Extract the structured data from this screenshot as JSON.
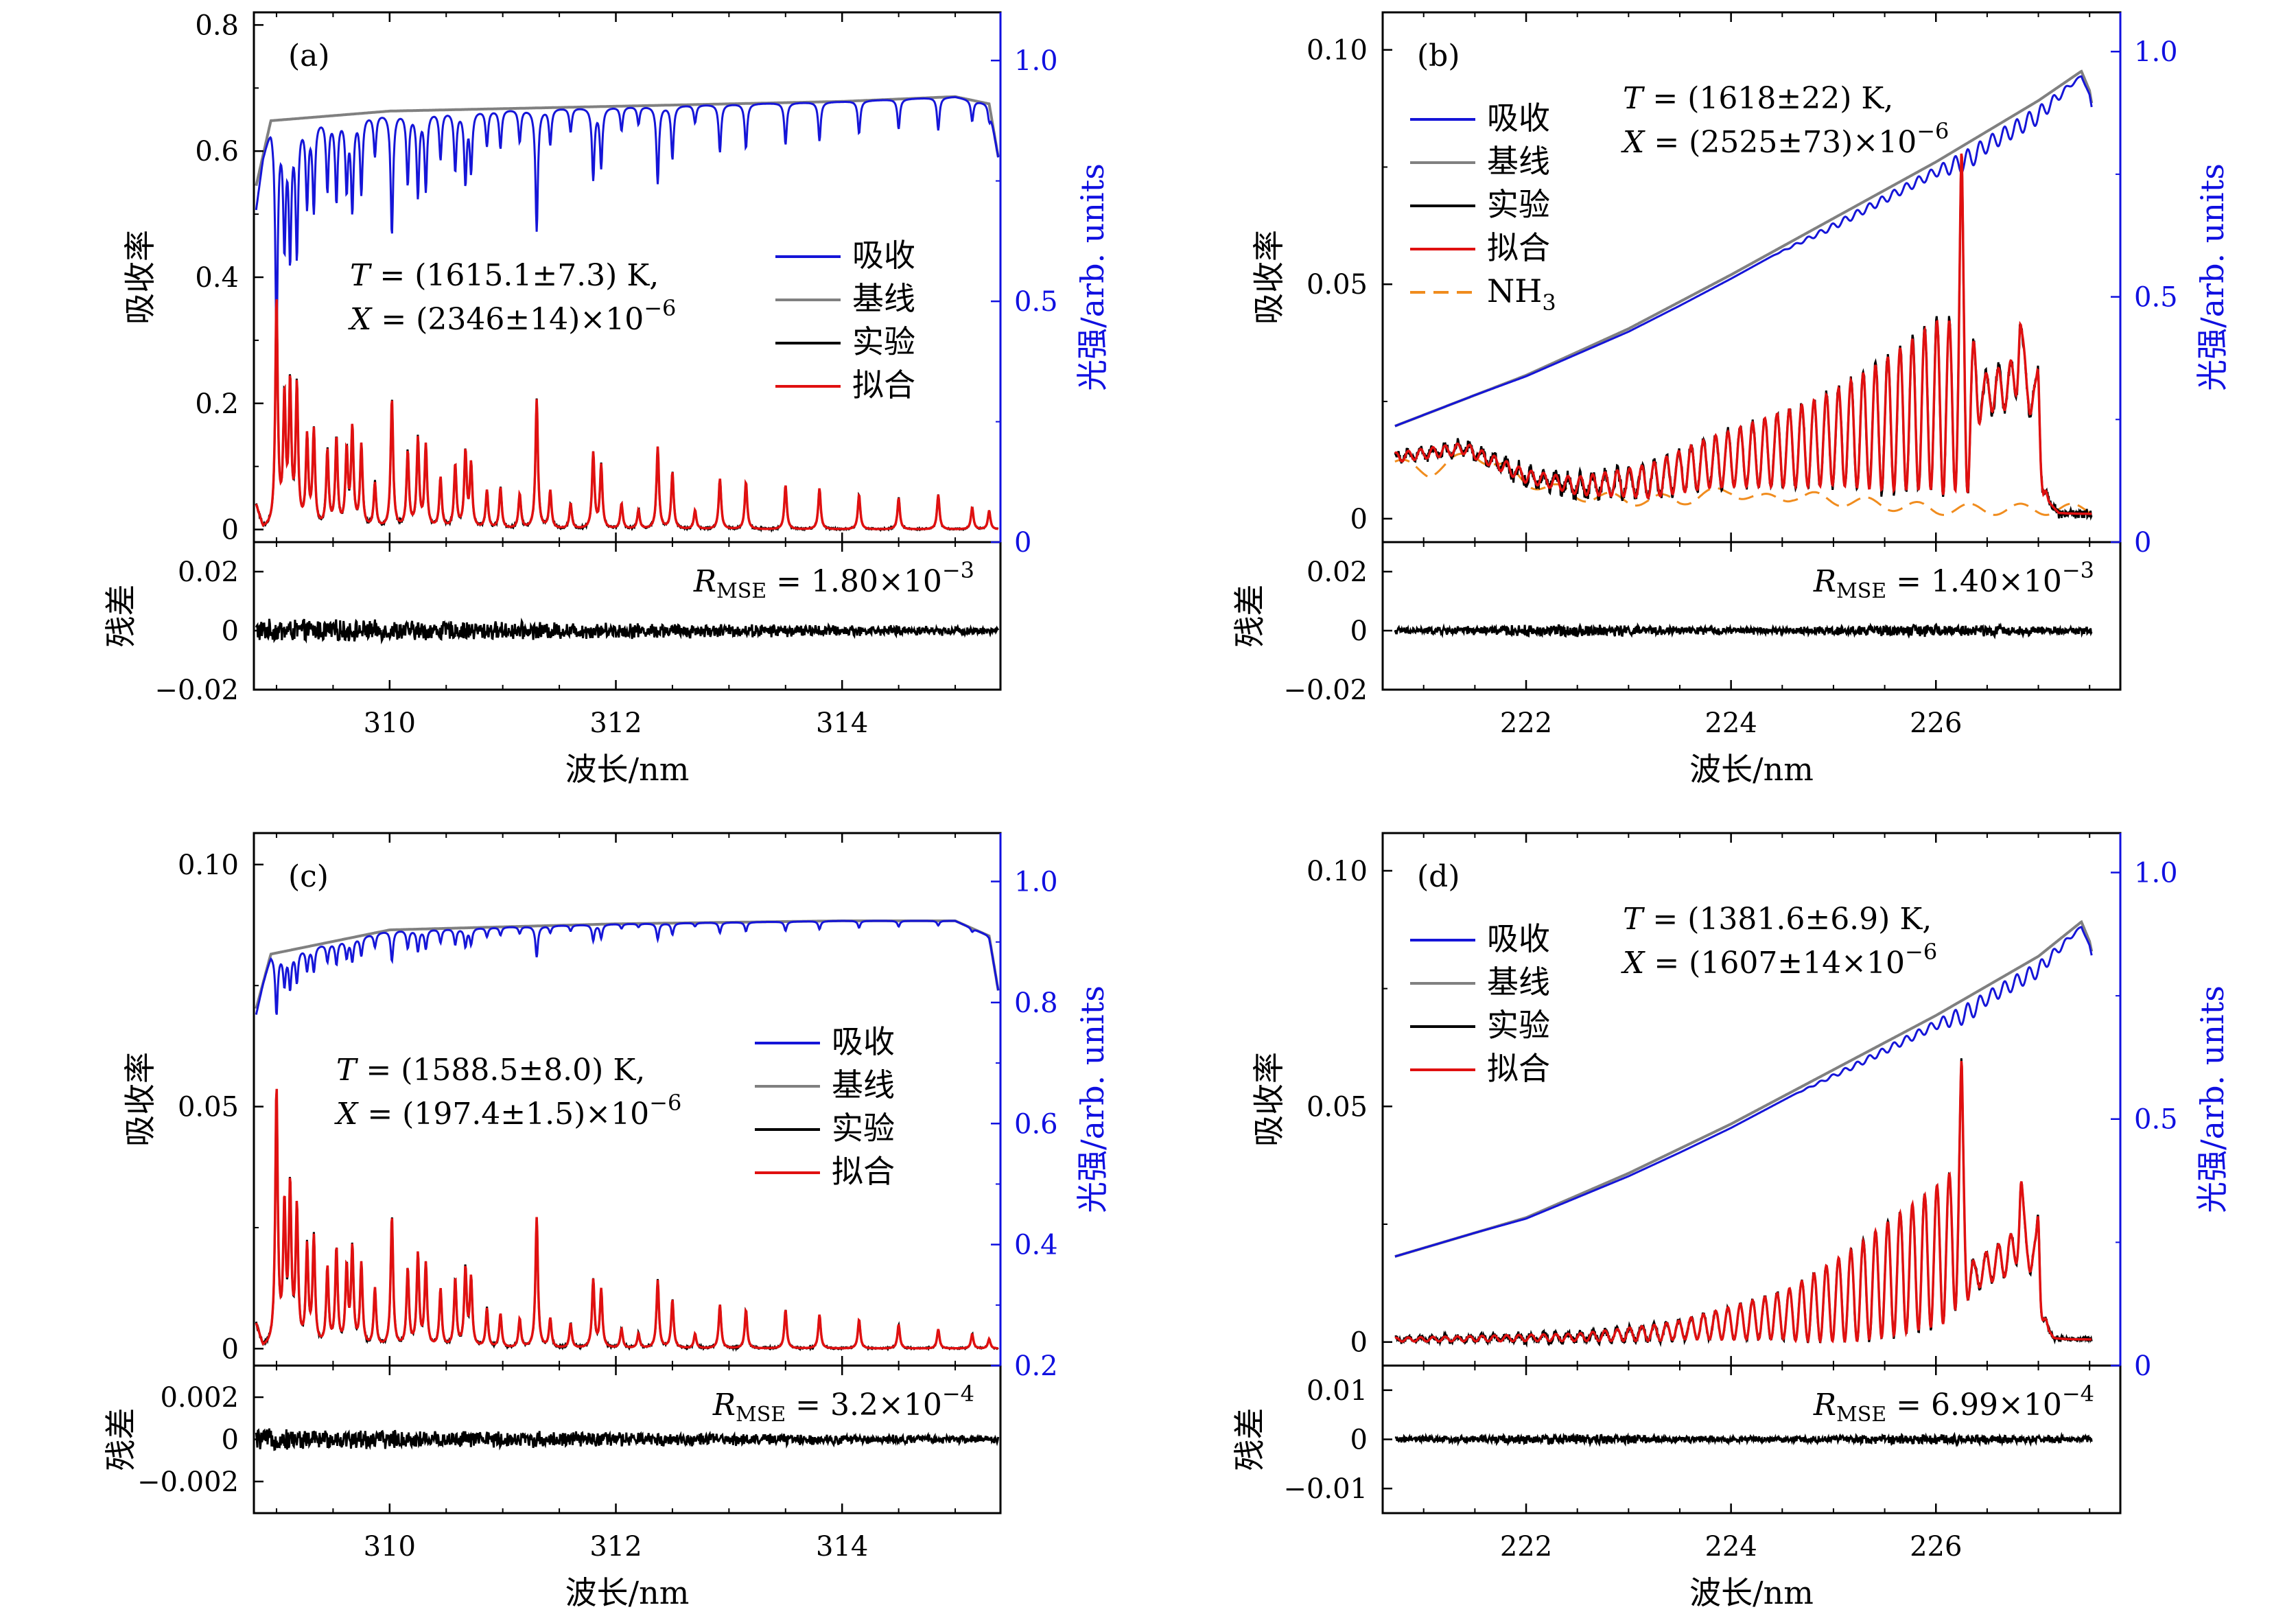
{
  "colors": {
    "absorption": "#1515d8",
    "baseline": "#808080",
    "experiment": "#000000",
    "fit": "#e01010",
    "nh3": "#f08c1e",
    "right_axis": "#1010e0"
  },
  "chart_data": [
    {
      "id": "a",
      "type": "line",
      "panel_label": "(a)",
      "xlabel": "波长/nm",
      "ylabel": "吸收率",
      "ylabel_right": "光强/arb. units",
      "residual_label": "残差",
      "xlim": [
        308.8,
        315.4
      ],
      "xticks": [
        310,
        312,
        314
      ],
      "xticklabels": [
        "310",
        "312",
        "314"
      ],
      "ylim": [
        -0.02,
        0.82
      ],
      "yticks": [
        0,
        0.2,
        0.4,
        0.6,
        0.8
      ],
      "yticklabels": [
        "0",
        "0.2",
        "0.4",
        "0.6",
        "0.8"
      ],
      "y2lim": [
        0,
        1.1
      ],
      "y2ticks": [
        0,
        0.5,
        1.0
      ],
      "y2ticklabels": [
        "0",
        "0.5",
        "1.0"
      ],
      "rlim": [
        -0.02,
        0.03
      ],
      "rticks": [
        -0.02,
        0,
        0.02
      ],
      "rticklabels": [
        "−0.02",
        "0",
        "0.02"
      ],
      "annotation": {
        "t_lhs": "T",
        "t_rhs": " = (1615.1±7.3) K,",
        "x_lhs": "X",
        "x_rhs": " = (2346±14)×10",
        "x_exp": "−6"
      },
      "rmse": {
        "lhs": "R",
        "sub": "MSE",
        "rhs": " = 1.80×10",
        "exp": "−3"
      },
      "legend": [
        "吸收",
        "基线",
        "实验",
        "拟合"
      ],
      "spectrum": {
        "kind": "oh",
        "noise_amp": 0.0035,
        "baseline_y2": [
          [
            308.82,
            0.74
          ],
          [
            308.95,
            0.875
          ],
          [
            310.0,
            0.895
          ],
          [
            312.0,
            0.905
          ],
          [
            314.0,
            0.915
          ],
          [
            315.0,
            0.925
          ],
          [
            315.3,
            0.91
          ],
          [
            315.38,
            0.8
          ]
        ],
        "peaks": [
          [
            309.0,
            0.36
          ],
          [
            309.07,
            0.2
          ],
          [
            309.12,
            0.22
          ],
          [
            309.18,
            0.22
          ],
          [
            309.27,
            0.14
          ],
          [
            309.33,
            0.15
          ],
          [
            309.45,
            0.12
          ],
          [
            309.53,
            0.14
          ],
          [
            309.62,
            0.12
          ],
          [
            309.67,
            0.155
          ],
          [
            309.75,
            0.13
          ],
          [
            309.87,
            0.07
          ],
          [
            310.02,
            0.205
          ],
          [
            310.16,
            0.12
          ],
          [
            310.25,
            0.14
          ],
          [
            310.32,
            0.13
          ],
          [
            310.45,
            0.08
          ],
          [
            310.58,
            0.1
          ],
          [
            310.67,
            0.12
          ],
          [
            310.72,
            0.1
          ],
          [
            310.86,
            0.06
          ],
          [
            310.98,
            0.065
          ],
          [
            311.15,
            0.055
          ],
          [
            311.3,
            0.205
          ],
          [
            311.42,
            0.06
          ],
          [
            311.6,
            0.04
          ],
          [
            311.8,
            0.12
          ],
          [
            311.87,
            0.1
          ],
          [
            312.05,
            0.04
          ],
          [
            312.2,
            0.03
          ],
          [
            312.37,
            0.13
          ],
          [
            312.5,
            0.09
          ],
          [
            312.7,
            0.03
          ],
          [
            312.92,
            0.08
          ],
          [
            313.15,
            0.075
          ],
          [
            313.5,
            0.07
          ],
          [
            313.8,
            0.065
          ],
          [
            314.15,
            0.055
          ],
          [
            314.5,
            0.05
          ],
          [
            314.85,
            0.055
          ],
          [
            315.15,
            0.035
          ],
          [
            315.3,
            0.03
          ]
        ]
      }
    },
    {
      "id": "b",
      "type": "line",
      "panel_label": "(b)",
      "xlabel": "波长/nm",
      "ylabel": "吸收率",
      "ylabel_right": "光强/arb. units",
      "residual_label": "残差",
      "xlim": [
        220.6,
        227.8
      ],
      "xticks": [
        222,
        224,
        226
      ],
      "xticklabels": [
        "222",
        "224",
        "226"
      ],
      "ylim": [
        -0.005,
        0.108
      ],
      "yticks": [
        0,
        0.05,
        0.1
      ],
      "yticklabels": [
        "0",
        "0.05",
        "0.10"
      ],
      "y2lim": [
        0,
        1.08
      ],
      "y2ticks": [
        0,
        0.5,
        1.0
      ],
      "y2ticklabels": [
        "0",
        "0.5",
        "1.0"
      ],
      "rlim": [
        -0.02,
        0.03
      ],
      "rticks": [
        -0.02,
        0,
        0.02
      ],
      "rticklabels": [
        "−0.02",
        "0",
        "0.02"
      ],
      "annotation": {
        "t_lhs": "T",
        "t_rhs": " = (1618±22) K,",
        "x_lhs": "X",
        "x_rhs": " = (2525±73)×10",
        "x_exp": "−6"
      },
      "rmse": {
        "lhs": "R",
        "sub": "MSE",
        "rhs": " = 1.40×10",
        "exp": "−3"
      },
      "legend": [
        "吸收",
        "基线",
        "实验",
        "拟合",
        "NH",
        "3"
      ],
      "spectrum": {
        "kind": "no",
        "noise_amp": 0.0018,
        "has_nh3": true,
        "baseline_y2": [
          [
            220.7,
            0.235
          ],
          [
            222.0,
            0.34
          ],
          [
            223.0,
            0.435
          ],
          [
            224.0,
            0.545
          ],
          [
            225.0,
            0.66
          ],
          [
            226.0,
            0.775
          ],
          [
            227.0,
            0.9
          ],
          [
            227.42,
            0.96
          ],
          [
            227.5,
            0.92
          ],
          [
            227.54,
            0.87
          ]
        ],
        "abs_dip": [
          [
            220.7,
            0
          ],
          [
            224.4,
            0.0
          ],
          [
            225.0,
            0.015
          ],
          [
            226.0,
            0.022
          ],
          [
            226.3,
            0.05
          ],
          [
            226.5,
            0.035
          ],
          [
            227.0,
            0.04
          ],
          [
            227.3,
            0.01
          ],
          [
            227.5,
            0
          ]
        ],
        "bg": [
          [
            220.7,
            0.013
          ],
          [
            221.4,
            0.015
          ],
          [
            222.0,
            0.009
          ],
          [
            222.5,
            0.007
          ],
          [
            223.2,
            0.008
          ],
          [
            223.8,
            0.012
          ],
          [
            224.3,
            0.014
          ],
          [
            224.8,
            0.016
          ],
          [
            225.5,
            0.02
          ],
          [
            226.0,
            0.024
          ],
          [
            226.3,
            0.02
          ],
          [
            226.4,
            0.026
          ],
          [
            226.9,
            0.029
          ],
          [
            227.05,
            0.004
          ],
          [
            227.2,
            0.001
          ],
          [
            227.5,
            0.001
          ]
        ],
        "osc": [
          [
            220.7,
            0.001
          ],
          [
            222.3,
            0.0015
          ],
          [
            223.0,
            0.003
          ],
          [
            224.0,
            0.006
          ],
          [
            225.0,
            0.01
          ],
          [
            226.0,
            0.018
          ],
          [
            226.3,
            0.02
          ],
          [
            226.45,
            0.004
          ],
          [
            227.0,
            0.006
          ],
          [
            227.1,
            0.0
          ]
        ],
        "big_peaks": [
          [
            226.25,
            0.038
          ],
          [
            226.82,
            0.012
          ],
          [
            227.0,
            0.018
          ]
        ],
        "nh3": [
          [
            220.7,
            0.012
          ],
          [
            221.05,
            0.01
          ],
          [
            221.5,
            0.014
          ],
          [
            222.0,
            0.008
          ],
          [
            222.5,
            0.005
          ],
          [
            223.0,
            0.004
          ],
          [
            223.5,
            0.004
          ],
          [
            224.0,
            0.006
          ],
          [
            224.3,
            0.004
          ],
          [
            224.6,
            0.005
          ],
          [
            225.0,
            0.004
          ],
          [
            225.5,
            0.003
          ],
          [
            226.0,
            0.002
          ],
          [
            226.5,
            0.002
          ],
          [
            227.0,
            0.002
          ],
          [
            227.5,
            0.002
          ]
        ]
      }
    },
    {
      "id": "c",
      "type": "line",
      "panel_label": "(c)",
      "xlabel": "波长/nm",
      "ylabel": "吸收率",
      "ylabel_right": "光强/arb. units",
      "residual_label": "残差",
      "xlim": [
        308.8,
        315.4
      ],
      "xticks": [
        310,
        312,
        314
      ],
      "xticklabels": [
        "310",
        "312",
        "314"
      ],
      "ylim": [
        -0.0035,
        0.1065
      ],
      "yticks": [
        0,
        0.05,
        0.1
      ],
      "yticklabels": [
        "0",
        "0.05",
        "0.10"
      ],
      "y2lim": [
        0.2,
        1.08
      ],
      "y2ticks": [
        0.2,
        0.4,
        0.6,
        0.8,
        1.0
      ],
      "y2ticklabels": [
        "0.2",
        "0.4",
        "0.6",
        "0.8",
        "1.0"
      ],
      "rlim": [
        -0.0035,
        0.0035
      ],
      "rticks": [
        -0.002,
        0,
        0.002
      ],
      "rticklabels": [
        "−0.002",
        "0",
        "0.002"
      ],
      "annotation": {
        "t_lhs": "T",
        "t_rhs": " = (1588.5±8.0) K,",
        "x_lhs": "X",
        "x_rhs": " = (197.4±1.5)×10",
        "x_exp": "−6"
      },
      "rmse": {
        "lhs": "R",
        "sub": "MSE",
        "rhs": " = 3.2×10",
        "exp": "−4"
      },
      "legend": [
        "吸收",
        "基线",
        "实验",
        "拟合"
      ],
      "spectrum": {
        "kind": "oh",
        "noise_amp": 0.00045,
        "baseline_y2": [
          [
            308.82,
            0.79
          ],
          [
            308.95,
            0.88
          ],
          [
            310.0,
            0.92
          ],
          [
            312.0,
            0.93
          ],
          [
            314.0,
            0.935
          ],
          [
            315.0,
            0.935
          ],
          [
            315.3,
            0.91
          ],
          [
            315.38,
            0.82
          ]
        ],
        "peaks": [
          [
            309.0,
            0.053
          ],
          [
            309.07,
            0.028
          ],
          [
            309.12,
            0.032
          ],
          [
            309.18,
            0.028
          ],
          [
            309.27,
            0.02
          ],
          [
            309.33,
            0.022
          ],
          [
            309.45,
            0.016
          ],
          [
            309.53,
            0.02
          ],
          [
            309.62,
            0.016
          ],
          [
            309.67,
            0.02
          ],
          [
            309.75,
            0.017
          ],
          [
            309.87,
            0.012
          ],
          [
            310.02,
            0.027
          ],
          [
            310.16,
            0.016
          ],
          [
            310.25,
            0.019
          ],
          [
            310.32,
            0.017
          ],
          [
            310.45,
            0.012
          ],
          [
            310.58,
            0.014
          ],
          [
            310.67,
            0.016
          ],
          [
            310.72,
            0.014
          ],
          [
            310.86,
            0.008
          ],
          [
            310.98,
            0.007
          ],
          [
            311.15,
            0.006
          ],
          [
            311.3,
            0.027
          ],
          [
            311.42,
            0.006
          ],
          [
            311.6,
            0.005
          ],
          [
            311.8,
            0.014
          ],
          [
            311.87,
            0.012
          ],
          [
            312.05,
            0.004
          ],
          [
            312.2,
            0.003
          ],
          [
            312.37,
            0.014
          ],
          [
            312.5,
            0.01
          ],
          [
            312.7,
            0.003
          ],
          [
            312.92,
            0.009
          ],
          [
            313.15,
            0.008
          ],
          [
            313.5,
            0.008
          ],
          [
            313.8,
            0.007
          ],
          [
            314.15,
            0.006
          ],
          [
            314.5,
            0.005
          ],
          [
            314.85,
            0.004
          ],
          [
            315.15,
            0.003
          ],
          [
            315.3,
            0.002
          ]
        ]
      }
    },
    {
      "id": "d",
      "type": "line",
      "panel_label": "(d)",
      "xlabel": "波长/nm",
      "ylabel": "吸收率",
      "ylabel_right": "光强/arb. units",
      "residual_label": "残差",
      "xlim": [
        220.6,
        227.8
      ],
      "xticks": [
        222,
        224,
        226
      ],
      "xticklabels": [
        "222",
        "224",
        "226"
      ],
      "ylim": [
        -0.005,
        0.108
      ],
      "yticks": [
        0,
        0.05,
        0.1
      ],
      "yticklabels": [
        "0",
        "0.05",
        "0.10"
      ],
      "y2lim": [
        0,
        1.08
      ],
      "y2ticks": [
        0,
        0.5,
        1.0
      ],
      "y2ticklabels": [
        "0",
        "0.5",
        "1.0"
      ],
      "rlim": [
        -0.015,
        0.015
      ],
      "rticks": [
        -0.01,
        0,
        0.01
      ],
      "rticklabels": [
        "−0.01",
        "0",
        "0.01"
      ],
      "annotation": {
        "t_lhs": "T",
        "t_rhs": " = (1381.6±6.9) K,",
        "x_lhs": "X",
        "x_rhs": " = (1607±14×10",
        "x_exp": "−6"
      },
      "rmse": {
        "lhs": "R",
        "sub": "MSE",
        "rhs": " = 6.99×10",
        "exp": "−4"
      },
      "legend": [
        "吸收",
        "基线",
        "实验",
        "拟合"
      ],
      "spectrum": {
        "kind": "no",
        "noise_amp": 0.0009,
        "has_nh3": false,
        "baseline_y2": [
          [
            220.7,
            0.22
          ],
          [
            222.0,
            0.3
          ],
          [
            223.0,
            0.39
          ],
          [
            224.0,
            0.49
          ],
          [
            225.0,
            0.6
          ],
          [
            226.0,
            0.71
          ],
          [
            227.0,
            0.83
          ],
          [
            227.42,
            0.9
          ],
          [
            227.5,
            0.86
          ],
          [
            227.54,
            0.82
          ]
        ],
        "abs_dip": [
          [
            220.7,
            0
          ],
          [
            224.6,
            0.0
          ],
          [
            225.2,
            0.012
          ],
          [
            226.0,
            0.02
          ],
          [
            226.3,
            0.045
          ],
          [
            226.5,
            0.03
          ],
          [
            227.0,
            0.035
          ],
          [
            227.3,
            0.01
          ],
          [
            227.5,
            0
          ]
        ],
        "bg": [
          [
            220.7,
            0.0005
          ],
          [
            222.5,
            0.001
          ],
          [
            223.3,
            0.002
          ],
          [
            224.0,
            0.004
          ],
          [
            224.6,
            0.006
          ],
          [
            225.2,
            0.01
          ],
          [
            225.8,
            0.016
          ],
          [
            226.2,
            0.02
          ],
          [
            226.35,
            0.012
          ],
          [
            226.45,
            0.015
          ],
          [
            226.9,
            0.02
          ],
          [
            227.02,
            0.004
          ],
          [
            227.15,
            0.0005
          ],
          [
            227.5,
            0.0005
          ]
        ],
        "osc": [
          [
            220.7,
            0.0004
          ],
          [
            222.5,
            0.0008
          ],
          [
            223.5,
            0.002
          ],
          [
            224.5,
            0.005
          ],
          [
            225.5,
            0.012
          ],
          [
            226.2,
            0.016
          ],
          [
            226.38,
            0.003
          ],
          [
            227.0,
            0.005
          ],
          [
            227.1,
            0.0
          ]
        ],
        "big_peaks": [
          [
            226.25,
            0.03
          ],
          [
            226.83,
            0.012
          ],
          [
            227.0,
            0.019
          ]
        ]
      }
    }
  ]
}
